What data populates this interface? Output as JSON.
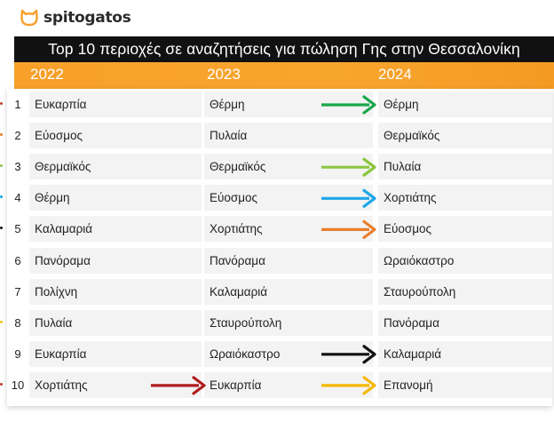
{
  "brand": {
    "name": "spitogatos",
    "icon": "cat-head-icon",
    "color": "#f7a02a"
  },
  "chart_data": {
    "type": "table",
    "title": "Top 10 περιοχές σε αναζητήσεις για πώληση Γης στην Θεσσαλονίκη",
    "columns": [
      "2022",
      "2023",
      "2024"
    ],
    "ranks": [
      "1",
      "2",
      "3",
      "4",
      "5",
      "6",
      "7",
      "8",
      "9",
      "10"
    ],
    "rows": [
      [
        "Ευκαρπία",
        "Θέρμη",
        "Θέρμη"
      ],
      [
        "Εύοσμος",
        "Πυλαία",
        "Θερμαϊκός"
      ],
      [
        "Θερμαϊκός",
        "Θερμαϊκός",
        "Πυλαία"
      ],
      [
        "Θέρμη",
        "Εύοσμος",
        "Χορτιάτης"
      ],
      [
        "Καλαμαριά",
        "Χορτιάτης",
        "Εύοσμος"
      ],
      [
        "Πανόραμα",
        "Πανόραμα",
        "Ωραιόκαστρο"
      ],
      [
        "Πολίχνη",
        "Καλαμαριά",
        "Σταυρούπολη"
      ],
      [
        "Πυλαία",
        "Σταυρούπολη",
        "Πανόραμα"
      ],
      [
        "Ευκαρπία",
        "Ωραιόκαστρο",
        "Καλαμαριά"
      ],
      [
        "Χορτιάτης",
        "Ευκαρπία",
        "Επανομή"
      ]
    ],
    "rank_dot_colors": [
      "#c0392b",
      "#e67e22",
      "#8bc34a",
      "#00a7e1",
      "#111111",
      null,
      null,
      "#f1c40f",
      null,
      "#c0392b"
    ],
    "arrows": [
      {
        "row": 0,
        "from_col": 1,
        "to_col": 2,
        "color": "#1aa64a"
      },
      {
        "row": 2,
        "from_col": 1,
        "to_col": 2,
        "color": "#8cc63f"
      },
      {
        "row": 3,
        "from_col": 1,
        "to_col": 2,
        "color": "#1ea7e8"
      },
      {
        "row": 4,
        "from_col": 1,
        "to_col": 2,
        "color": "#e87e2e"
      },
      {
        "row": 8,
        "from_col": 1,
        "to_col": 2,
        "color": "#111111"
      },
      {
        "row": 9,
        "from_col": 1,
        "to_col": 2,
        "color": "#f4b800"
      },
      {
        "row": 9,
        "from_col": 0,
        "to_col": 1,
        "color": "#b01c1c"
      }
    ]
  }
}
